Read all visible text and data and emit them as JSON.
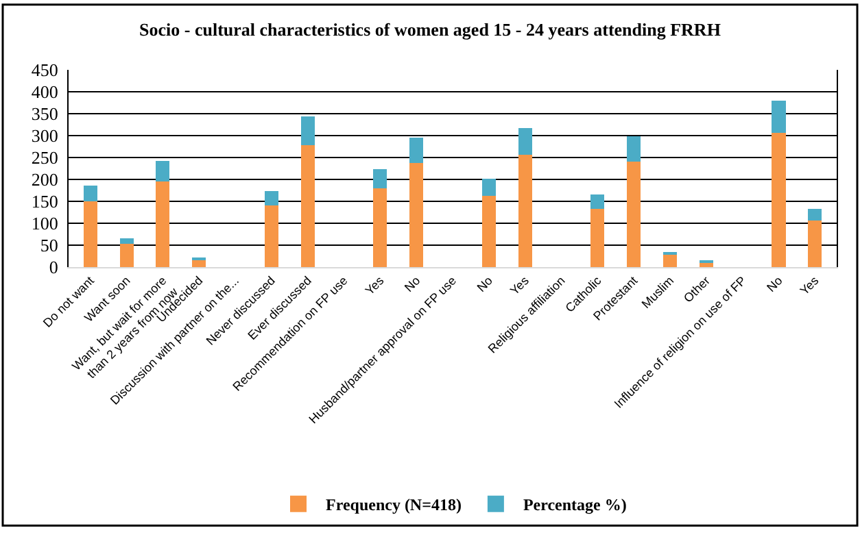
{
  "chart_data": {
    "type": "bar",
    "stacked": true,
    "title": "Socio - cultural characteristics of women aged 15 - 24 years attending FRRH",
    "categories": [
      "Do not want",
      "Want soon",
      "Want, but wait for more\nthan 2 years from now",
      "Undecided",
      "Discussion with partner on the...",
      "Never discussed",
      "Ever discussed",
      "Recommendation on FP use",
      "Yes",
      "No",
      "Husband/partner approval on FP use",
      "No",
      "Yes",
      "Religious affiliation",
      "Catholic",
      "Protestant",
      "Muslim",
      "Other",
      "Influence of religion on use of FP",
      "No",
      "Yes"
    ],
    "series": [
      {
        "name": "Frequency (N=418)",
        "color": "#f79646",
        "values": [
          150,
          53,
          195,
          17,
          null,
          140,
          278,
          null,
          180,
          238,
          null,
          162,
          256,
          null,
          133,
          241,
          28,
          11,
          null,
          307,
          107
        ]
      },
      {
        "name": "Percentage %)",
        "color": "#4bacc6",
        "values": [
          36,
          12,
          47,
          4,
          null,
          34,
          66,
          null,
          43,
          57,
          null,
          39,
          61,
          null,
          32,
          58,
          7,
          3,
          null,
          73,
          26
        ]
      }
    ],
    "ylim": [
      0,
      450
    ],
    "yticks": [
      0,
      50,
      100,
      150,
      200,
      250,
      300,
      350,
      400,
      450
    ],
    "grid": "y",
    "legend": "bottom"
  }
}
